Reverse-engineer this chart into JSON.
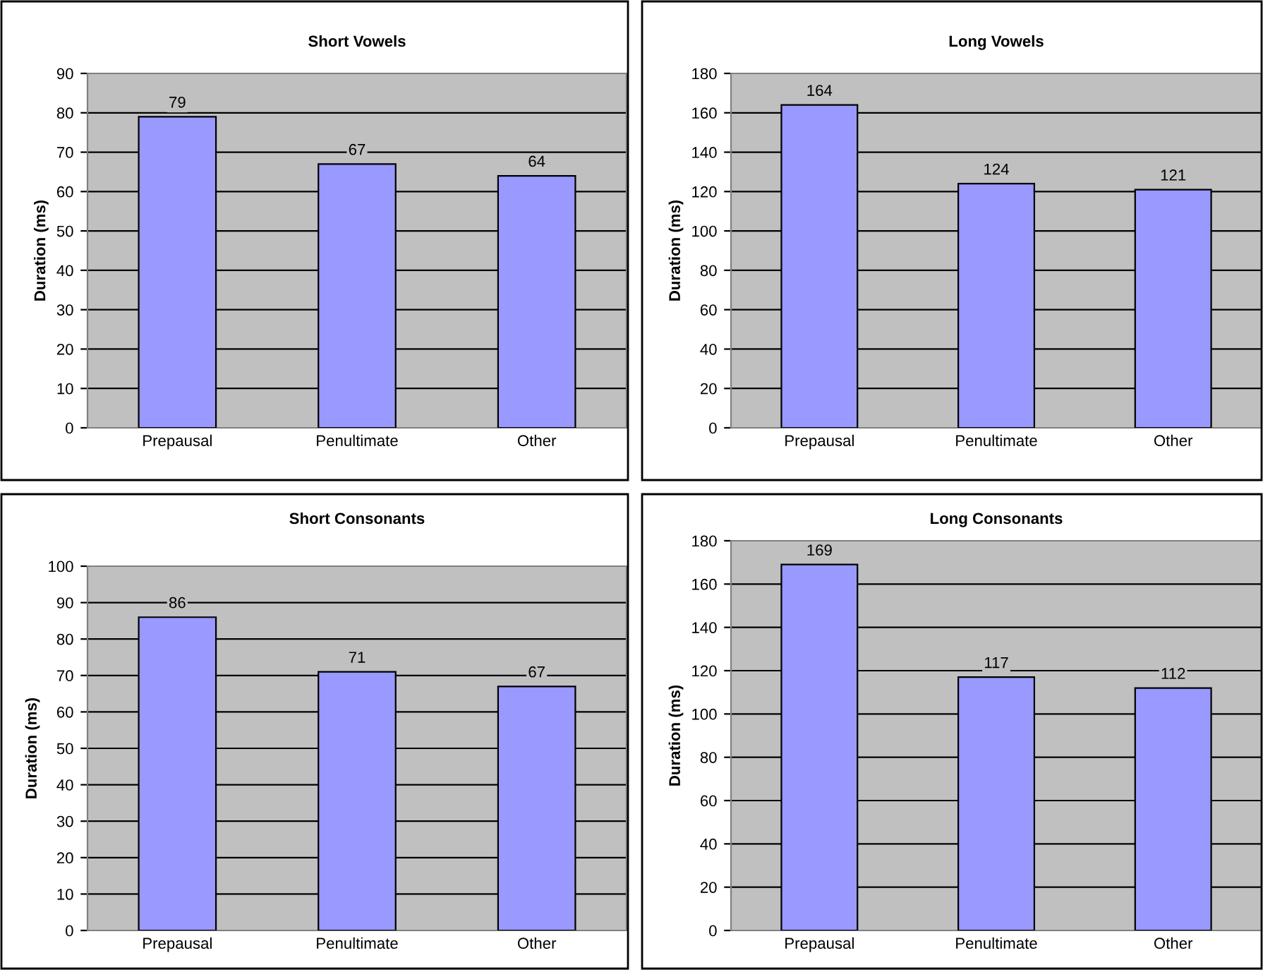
{
  "chart_data": [
    {
      "type": "bar",
      "title": "Short Vowels",
      "ylabel": "Duration (ms)",
      "categories": [
        "Prepausal",
        "Penultimate",
        "Other"
      ],
      "values": [
        79,
        67,
        64
      ],
      "color": "#9999ff",
      "ylim": [
        0,
        90
      ],
      "yticks": [
        0,
        10,
        20,
        30,
        40,
        50,
        60,
        70,
        80,
        90
      ],
      "grid": "y",
      "data_labels": true
    },
    {
      "type": "bar",
      "title": "Long Vowels",
      "ylabel": "Duration (ms)",
      "categories": [
        "Prepausal",
        "Penultimate",
        "Other"
      ],
      "values": [
        164,
        124,
        121
      ],
      "color": "#9999ff",
      "ylim": [
        0,
        180
      ],
      "yticks": [
        0,
        20,
        40,
        60,
        80,
        100,
        120,
        140,
        160,
        180
      ],
      "grid": "y",
      "data_labels": true
    },
    {
      "type": "bar",
      "title": "Short Consonants",
      "ylabel": "Duration (ms)",
      "categories": [
        "Prepausal",
        "Penultimate",
        "Other"
      ],
      "values": [
        86,
        71,
        67
      ],
      "color": "#9999ff",
      "ylim": [
        0,
        100
      ],
      "yticks": [
        0,
        10,
        20,
        30,
        40,
        50,
        60,
        70,
        80,
        90,
        100
      ],
      "grid": "y",
      "data_labels": true
    },
    {
      "type": "bar",
      "title": "Long Consonants",
      "ylabel": "Duration (ms)",
      "categories": [
        "Prepausal",
        "Penultimate",
        "Other"
      ],
      "values": [
        169,
        117,
        112
      ],
      "color": "#9999ff",
      "ylim": [
        0,
        180
      ],
      "yticks": [
        0,
        20,
        40,
        60,
        80,
        100,
        120,
        140,
        160,
        180
      ],
      "grid": "y",
      "data_labels": true
    }
  ]
}
